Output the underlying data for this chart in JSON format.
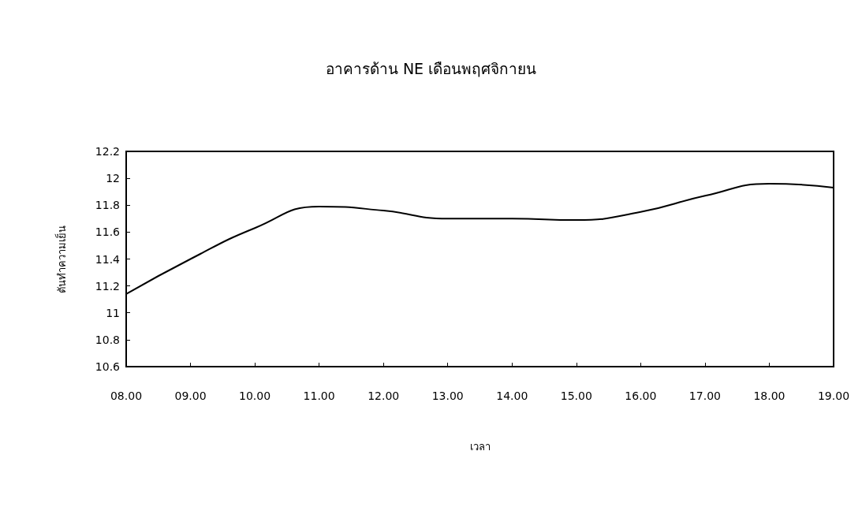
{
  "chart_data": {
    "type": "line",
    "title": "อาคารด้าน NE เดือนพฤศจิกายน",
    "xlabel": "เวลา",
    "ylabel": "ตันทำความเย็น",
    "categories": [
      "08.00",
      "09.00",
      "10.00",
      "11.00",
      "12.00",
      "13.00",
      "14.00",
      "15.00",
      "16.00",
      "17.00",
      "18.00",
      "19.00"
    ],
    "series": [
      {
        "color": "#000000",
        "values": [
          11.14,
          11.4,
          11.63,
          11.79,
          11.76,
          11.7,
          11.7,
          11.69,
          11.75,
          11.87,
          11.96,
          11.93
        ]
      }
    ],
    "ylim": [
      10.6,
      12.2
    ],
    "yticks": [
      10.6,
      10.8,
      11,
      11.2,
      11.4,
      11.6,
      11.8,
      12,
      12.2
    ],
    "grid": false,
    "marker": "none",
    "line_style": "solid"
  }
}
